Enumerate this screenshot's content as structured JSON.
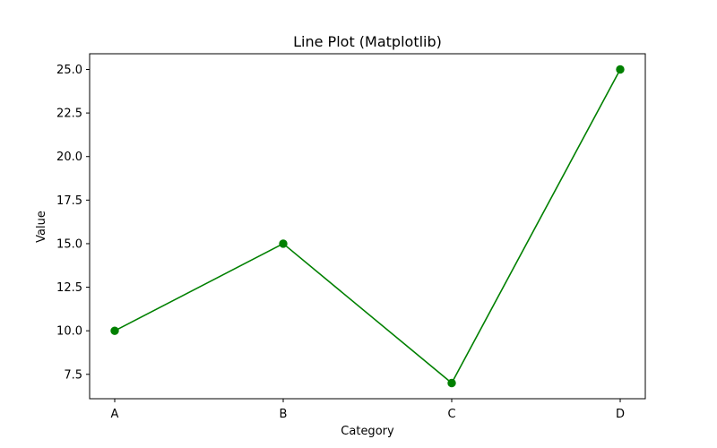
{
  "chart_data": {
    "type": "line",
    "title": "Line Plot (Matplotlib)",
    "xlabel": "Category",
    "ylabel": "Value",
    "categories": [
      "A",
      "B",
      "C",
      "D"
    ],
    "series": [
      {
        "values": [
          10,
          15,
          7,
          25
        ],
        "color": "#008000",
        "marker": "circle"
      }
    ],
    "ylim": [
      6.1,
      25.9
    ],
    "yticks": [
      7.5,
      10.0,
      12.5,
      15.0,
      17.5,
      20.0,
      22.5,
      25.0
    ],
    "ytick_labels": [
      "7.5",
      "10.0",
      "12.5",
      "15.0",
      "17.5",
      "20.0",
      "22.5",
      "25.0"
    ],
    "grid": false,
    "legend": null
  }
}
